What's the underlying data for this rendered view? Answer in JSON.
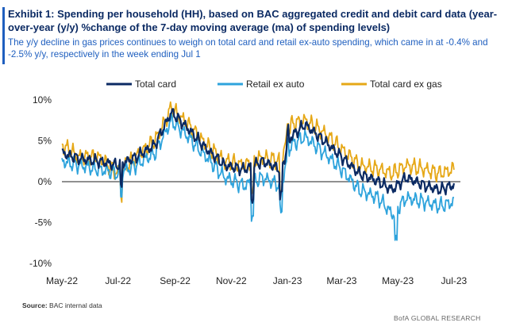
{
  "header": {
    "title": "Exhibit 1: Spending per household (HH), based on BAC aggregated credit and debit card data (year-over-year (y/y)  %change of the 7-day moving average (ma)  of spending levels)",
    "subtitle": "The y/y decline in gas prices continues to weigh on total card and retail ex-auto spending, which came in at -0.4% and -2.5% y/y, respectively in the week ending Jul 1"
  },
  "footer": {
    "source_label": "Source:",
    "source_text": "BAC internal data",
    "brand": "BofA GLOBAL RESEARCH"
  },
  "colors": {
    "total_card": "#0b2a63",
    "retail_ex_auto": "#2ea3dc",
    "total_card_ex_gas": "#e6a817",
    "accent": "#1f5fbf"
  },
  "chart_data": {
    "type": "line",
    "ylim": [
      -10,
      10
    ],
    "yticks": [
      "10%",
      "5%",
      "0%",
      "-5%",
      "-10%"
    ],
    "ytick_values": [
      10,
      5,
      0,
      -5,
      -10
    ],
    "xticks": [
      "May-22",
      "Jul-22",
      "Sep-22",
      "Nov-22",
      "Jan-23",
      "Mar-23",
      "May-23",
      "Jul-23"
    ],
    "x_range": [
      "2022-05-01",
      "2023-07-08"
    ],
    "grid": false,
    "zero_line": true,
    "legend_position": "top",
    "keypoints": {
      "x": [
        "2022-05-01",
        "2022-05-20",
        "2022-06-10",
        "2022-07-01",
        "2022-07-20",
        "2022-08-10",
        "2022-08-28",
        "2022-09-15",
        "2022-10-05",
        "2022-10-25",
        "2022-11-15",
        "2022-12-05",
        "2022-12-25",
        "2023-01-05",
        "2023-01-20",
        "2023-02-10",
        "2023-03-01",
        "2023-03-20",
        "2023-04-10",
        "2023-04-25",
        "2023-05-10",
        "2023-05-31",
        "2023-06-15",
        "2023-07-01"
      ],
      "total_card": [
        3.5,
        2.8,
        2.5,
        2.0,
        3.0,
        4.5,
        8.5,
        6.5,
        4.0,
        2.0,
        1.5,
        2.5,
        1.5,
        5.5,
        7.0,
        5.0,
        3.0,
        1.0,
        0.0,
        -1.0,
        0.5,
        -0.5,
        -1.0,
        -0.4
      ],
      "retail_ex_auto": [
        2.5,
        2.0,
        1.5,
        1.0,
        2.0,
        3.5,
        7.5,
        5.5,
        3.0,
        0.5,
        -0.5,
        0.5,
        -0.5,
        4.5,
        5.5,
        3.5,
        1.5,
        -1.0,
        -2.0,
        -4.0,
        -2.0,
        -2.5,
        -3.0,
        -2.5
      ],
      "total_card_ex_gas": [
        4.5,
        3.0,
        3.0,
        1.0,
        3.0,
        5.0,
        9.0,
        7.0,
        4.5,
        2.5,
        2.0,
        3.0,
        2.5,
        7.0,
        7.5,
        6.0,
        4.0,
        2.0,
        1.5,
        1.0,
        2.0,
        1.5,
        1.0,
        1.5
      ]
    },
    "series": [
      {
        "name": "Total card",
        "key": "total_card"
      },
      {
        "name": "Retail ex auto",
        "key": "retail_ex_auto"
      },
      {
        "name": "Total card ex gas",
        "key": "total_card_ex_gas"
      }
    ]
  }
}
